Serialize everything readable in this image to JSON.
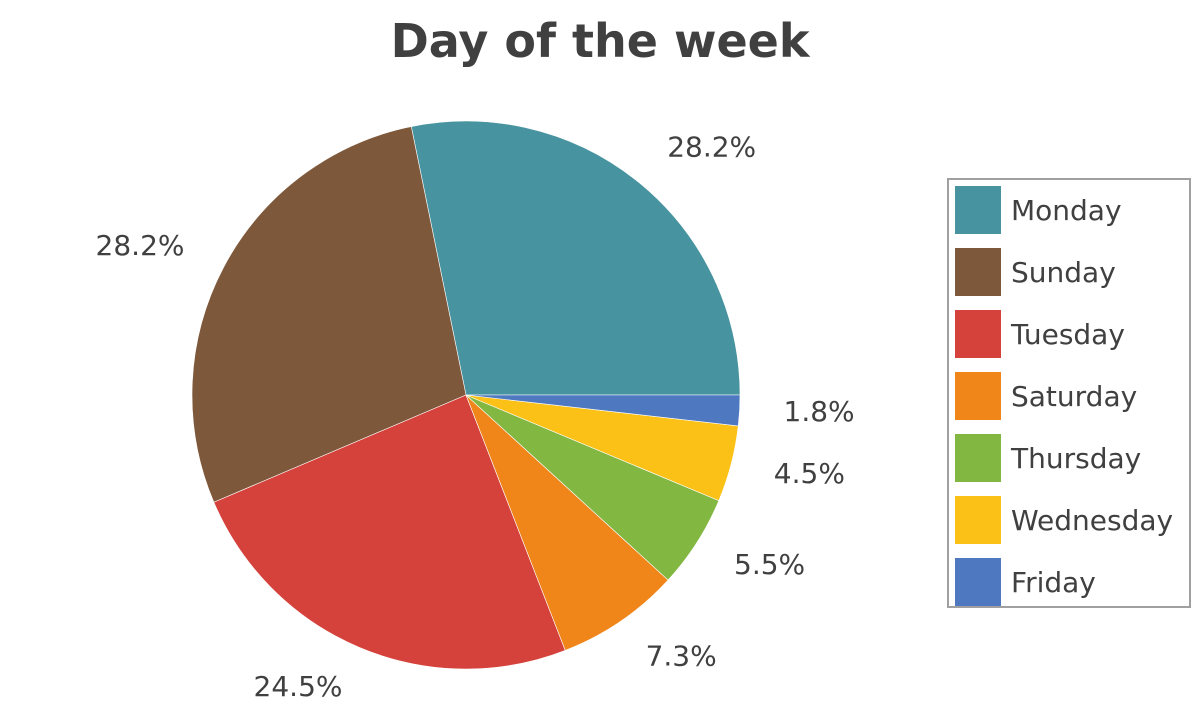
{
  "chart_data": {
    "type": "pie",
    "title": "Day of the week",
    "slices": [
      {
        "name": "Monday",
        "value": 28.2,
        "label": "28.2%",
        "color": "#4793a0"
      },
      {
        "name": "Sunday",
        "value": 28.2,
        "label": "28.2%",
        "color": "#7e583a"
      },
      {
        "name": "Tuesday",
        "value": 24.5,
        "label": "24.5%",
        "color": "#d5423b"
      },
      {
        "name": "Saturday",
        "value": 7.3,
        "label": "7.3%",
        "color": "#f08519"
      },
      {
        "name": "Thursday",
        "value": 5.5,
        "label": "5.5%",
        "color": "#82b741"
      },
      {
        "name": "Wednesday",
        "value": 4.5,
        "label": "4.5%",
        "color": "#fbc117"
      },
      {
        "name": "Friday",
        "value": 1.8,
        "label": "1.8%",
        "color": "#4e78c0"
      }
    ],
    "start_angle": "3 o'clock",
    "direction": "counterclockwise",
    "legend_position": "right"
  }
}
